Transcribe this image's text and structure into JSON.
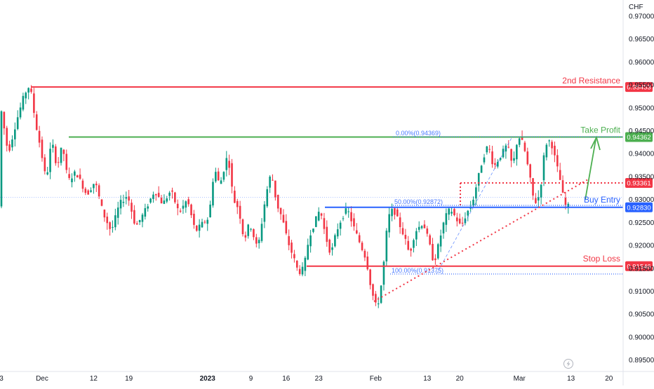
{
  "chart_data": {
    "type": "candlestick",
    "currency": "CHF",
    "y_ticks": [
      "0.97000",
      "0.96500",
      "0.96000",
      "0.95500",
      "0.95000",
      "0.94500",
      "0.94000",
      "0.93500",
      "0.93000",
      "0.92500",
      "0.92000",
      "0.91500",
      "0.91000",
      "0.90500",
      "0.90000",
      "0.89500"
    ],
    "y_tick_values": [
      0.97,
      0.965,
      0.96,
      0.955,
      0.95,
      0.945,
      0.94,
      0.935,
      0.93,
      0.925,
      0.92,
      0.915,
      0.91,
      0.905,
      0.9,
      0.895
    ],
    "ylim": [
      0.8925,
      0.9735
    ],
    "x_ticks": [
      "3",
      "Dec",
      "12",
      "19",
      "2023",
      "9",
      "16",
      "23",
      "Feb",
      "13",
      "20",
      "Mar",
      "13",
      "20"
    ],
    "x_tick_index": [
      0,
      15,
      34,
      47,
      76,
      92,
      105,
      117,
      138,
      157,
      169,
      191,
      210,
      224
    ],
    "bar_count": 232,
    "levels": [
      {
        "name": "2nd Resistance",
        "label": "2nd Resistance",
        "value": 0.95453,
        "value_label": "0.95453",
        "color": "#f23645"
      },
      {
        "name": "Take Profit",
        "label": "Take Profit",
        "value": 0.94362,
        "value_label": "0.94362",
        "color": "#4caf50"
      },
      {
        "name": "Buy Entry",
        "label": "Buy Entry",
        "value": 0.9283,
        "value_label": "0.92830",
        "color": "#2962ff"
      },
      {
        "name": "Stop Loss",
        "label": "Stop Loss",
        "value": 0.91546,
        "value_label": "0.91546",
        "color": "#f23645"
      },
      {
        "name": "resistance-dotted",
        "label": "",
        "value": 0.93361,
        "value_label": "0.93361",
        "color": "#f23645"
      }
    ],
    "fib_labels": [
      "0.00%(0.94369)",
      "50.00%(0.92872)",
      "100.00%(0.91375)"
    ],
    "fib_values": [
      0.94369,
      0.92872,
      0.91375
    ],
    "ohlc_anchors": [
      [
        0,
        0.951
      ],
      [
        3,
        0.94
      ],
      [
        6,
        0.947
      ],
      [
        9,
        0.953
      ],
      [
        11,
        0.955
      ],
      [
        13,
        0.947
      ],
      [
        15,
        0.941
      ],
      [
        17,
        0.934
      ],
      [
        19,
        0.943
      ],
      [
        21,
        0.937
      ],
      [
        23,
        0.942
      ],
      [
        25,
        0.934
      ],
      [
        28,
        0.936
      ],
      [
        32,
        0.931
      ],
      [
        35,
        0.934
      ],
      [
        38,
        0.927
      ],
      [
        41,
        0.923
      ],
      [
        44,
        0.929
      ],
      [
        47,
        0.931
      ],
      [
        50,
        0.924
      ],
      [
        53,
        0.927
      ],
      [
        57,
        0.932
      ],
      [
        60,
        0.929
      ],
      [
        63,
        0.932
      ],
      [
        66,
        0.927
      ],
      [
        69,
        0.93
      ],
      [
        72,
        0.923
      ],
      [
        75,
        0.925
      ],
      [
        77,
        0.926
      ],
      [
        79,
        0.937
      ],
      [
        81,
        0.933
      ],
      [
        84,
        0.94
      ],
      [
        86,
        0.93
      ],
      [
        88,
        0.928
      ],
      [
        90,
        0.921
      ],
      [
        92,
        0.925
      ],
      [
        95,
        0.919
      ],
      [
        98,
        0.931
      ],
      [
        100,
        0.936
      ],
      [
        102,
        0.929
      ],
      [
        104,
        0.926
      ],
      [
        106,
        0.921
      ],
      [
        109,
        0.916
      ],
      [
        110,
        0.914
      ],
      [
        112,
        0.915
      ],
      [
        114,
        0.922
      ],
      [
        116,
        0.925
      ],
      [
        118,
        0.928
      ],
      [
        120,
        0.922
      ],
      [
        122,
        0.918
      ],
      [
        124,
        0.923
      ],
      [
        126,
        0.926
      ],
      [
        128,
        0.928
      ],
      [
        131,
        0.923
      ],
      [
        133,
        0.92
      ],
      [
        135,
        0.917
      ],
      [
        137,
        0.91
      ],
      [
        139,
        0.906
      ],
      [
        141,
        0.913
      ],
      [
        143,
        0.926
      ],
      [
        145,
        0.928
      ],
      [
        147,
        0.925
      ],
      [
        149,
        0.922
      ],
      [
        151,
        0.918
      ],
      [
        153,
        0.923
      ],
      [
        156,
        0.925
      ],
      [
        158,
        0.921
      ],
      [
        160,
        0.916
      ],
      [
        162,
        0.921
      ],
      [
        164,
        0.926
      ],
      [
        166,
        0.928
      ],
      [
        168,
        0.926
      ],
      [
        170,
        0.924
      ],
      [
        172,
        0.927
      ],
      [
        174,
        0.929
      ],
      [
        176,
        0.934
      ],
      [
        178,
        0.939
      ],
      [
        180,
        0.942
      ],
      [
        182,
        0.937
      ],
      [
        184,
        0.939
      ],
      [
        187,
        0.942
      ],
      [
        189,
        0.937
      ],
      [
        191,
        0.944
      ],
      [
        193,
        0.942
      ],
      [
        195,
        0.936
      ],
      [
        197,
        0.929
      ],
      [
        199,
        0.931
      ],
      [
        201,
        0.942
      ],
      [
        203,
        0.943
      ],
      [
        205,
        0.938
      ],
      [
        207,
        0.933
      ],
      [
        208,
        0.929
      ],
      [
        209,
        0.9285
      ]
    ],
    "current_price": 0.9305
  }
}
